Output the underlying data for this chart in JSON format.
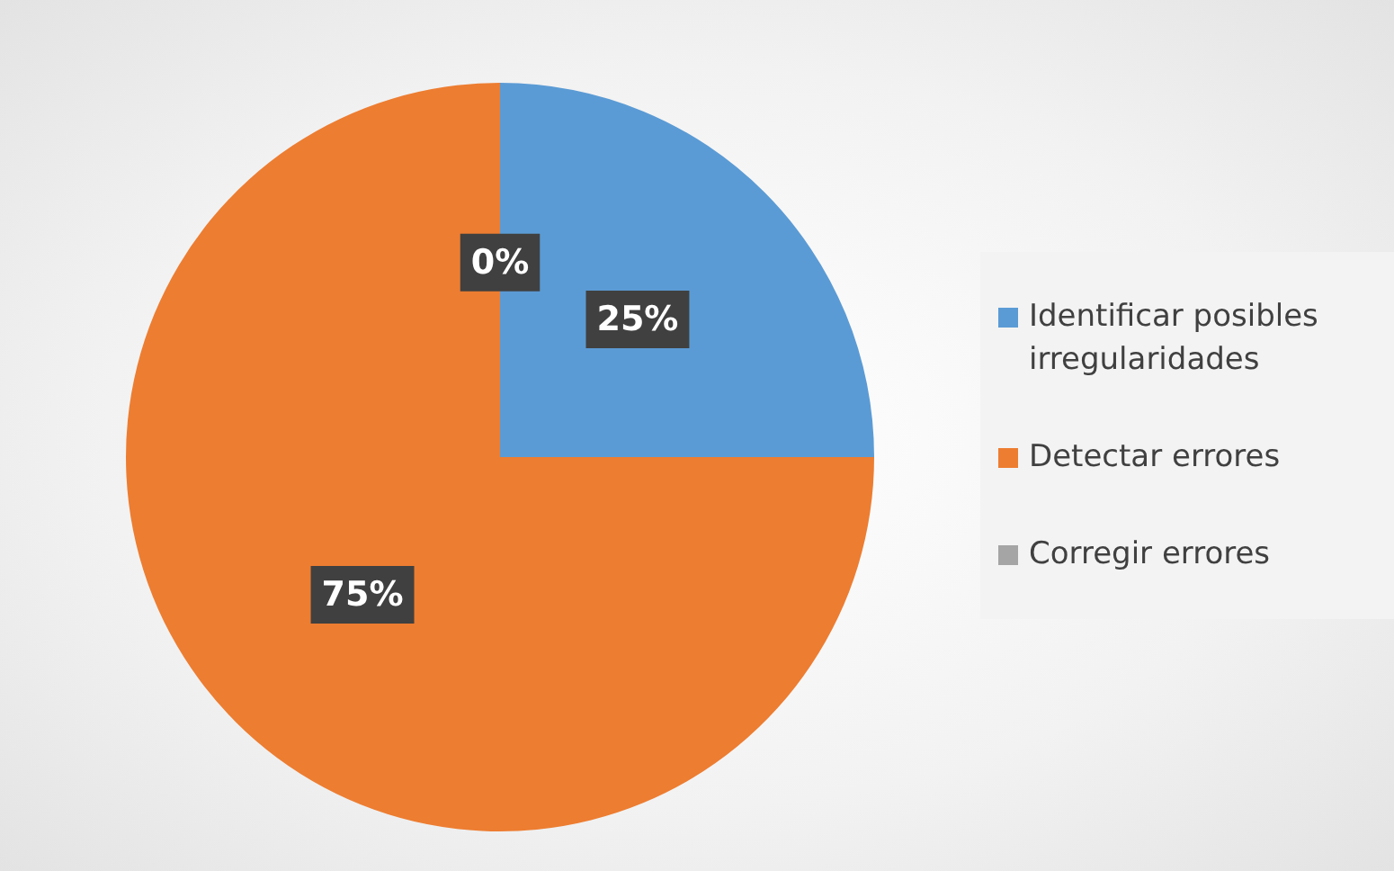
{
  "chart_data": {
    "type": "pie",
    "categories": [
      "Identificar posibles irregularidades",
      "Detectar errores",
      "Corregir errores"
    ],
    "values": [
      25,
      75,
      0
    ],
    "colors": [
      "#5b9bd5",
      "#ed7d31",
      "#a5a5a5"
    ],
    "value_labels": [
      "25%",
      "75%",
      "0%"
    ],
    "legend": "right"
  }
}
